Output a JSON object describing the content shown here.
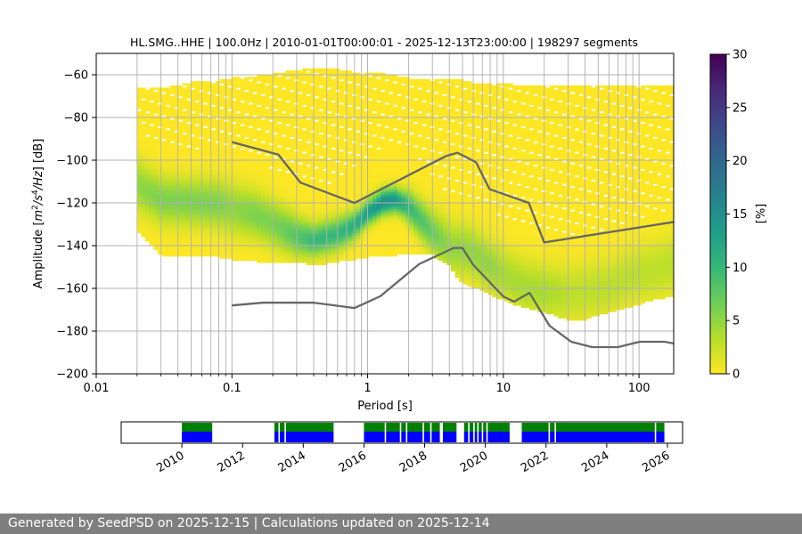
{
  "chart_data": [
    {
      "type": "heatmap",
      "title": "HL.SMG..HHE | 100.0Hz | 2010-01-01T00:00:01 - 2025-12-13T23:00:00 | 198297 segments",
      "xlabel": "Period [s]",
      "ylabel_parts": [
        "Amplitude [",
        "m",
        "2",
        "/s",
        "4",
        "/Hz",
        "] [dB]"
      ],
      "x_scale": "log",
      "xlim": [
        0.01,
        180
      ],
      "ylim": [
        -200,
        -50
      ],
      "x_ticks": [
        0.01,
        0.1,
        1,
        10,
        100
      ],
      "x_tick_labels": [
        "0.01",
        "0.1",
        "1",
        "10",
        "100"
      ],
      "y_ticks": [
        -200,
        -180,
        -160,
        -140,
        -120,
        -100,
        -80,
        -60
      ],
      "y_tick_labels": [
        "−200",
        "−180",
        "−160",
        "−140",
        "−120",
        "−100",
        "−80",
        "−60"
      ],
      "colorbar": {
        "label": "[%]",
        "range": [
          0,
          30
        ],
        "ticks": [
          0,
          5,
          10,
          15,
          20,
          25,
          30
        ],
        "tick_labels": [
          "0",
          "5",
          "10",
          "15",
          "20",
          "25",
          "30"
        ],
        "colormap": "viridis_r",
        "colors": [
          "#fde725",
          "#b5de2b",
          "#6ece58",
          "#35b779",
          "#1f9e89",
          "#26828e",
          "#31688e",
          "#3e4989",
          "#482878",
          "#440154"
        ]
      },
      "psd_distribution": {
        "period": [
          0.02,
          0.03,
          0.05,
          0.08,
          0.1,
          0.15,
          0.2,
          0.3,
          0.4,
          0.6,
          0.8,
          1.0,
          1.3,
          1.6,
          2.0,
          3.0,
          4.0,
          4.5,
          5.0,
          6.0,
          7.0,
          8.0,
          10,
          12,
          15,
          20,
          30,
          40,
          60,
          80,
          100,
          130,
          180
        ],
        "mode_db": [
          -112,
          -119,
          -120,
          -121,
          -123,
          -126,
          -130,
          -136,
          -138,
          -135,
          -131,
          -125,
          -120,
          -119,
          -122,
          -134,
          -141,
          -142,
          -142,
          -144,
          -147,
          -150,
          -154,
          -157,
          -160,
          -162,
          -163,
          -162,
          -160,
          -156,
          -154,
          -152,
          -149
        ],
        "max_percent": [
          5,
          6,
          6,
          6,
          5,
          6,
          6,
          8,
          10,
          10,
          11,
          13,
          15,
          14,
          10,
          7,
          5,
          5,
          5,
          5,
          5,
          5,
          4,
          4,
          4,
          4,
          3,
          3,
          3,
          3,
          3,
          3,
          3
        ],
        "min_db": [
          -133,
          -145,
          -145,
          -146,
          -147,
          -148,
          -148,
          -148,
          -150,
          -148,
          -147,
          -146,
          -145,
          -145,
          -144,
          -145,
          -150,
          -155,
          -158,
          -160,
          -162,
          -164,
          -166,
          -168,
          -170,
          -172,
          -175,
          -175,
          -172,
          -170,
          -168,
          -166,
          -164
        ],
        "max_db": [
          -66,
          -67,
          -64,
          -63,
          -62,
          -61,
          -60,
          -58,
          -57,
          -58,
          -59,
          -60,
          -60,
          -61,
          -62,
          -63,
          -63,
          -63,
          -63,
          -64,
          -65,
          -65,
          -65,
          -65,
          -66,
          -66,
          -66,
          -66,
          -66,
          -66,
          -66,
          -66,
          -66
        ]
      },
      "nhnm": {
        "period": [
          0.1,
          0.22,
          0.32,
          0.8,
          3.8,
          4.6,
          6.3,
          7.9,
          15.4,
          20,
          354
        ],
        "db": [
          -91.5,
          -97.4,
          -110.5,
          -120,
          -98,
          -96.5,
          -101,
          -113.5,
          -120,
          -138.5,
          -126
        ]
      },
      "nlnm": {
        "period": [
          0.1,
          0.17,
          0.4,
          0.8,
          1.24,
          2.4,
          4.3,
          5,
          6,
          10,
          12,
          15.6,
          21.9,
          31.6,
          45,
          70,
          101,
          154,
          180
        ],
        "db": [
          -168,
          -166.7,
          -166.7,
          -169.2,
          -163.7,
          -148.6,
          -141.1,
          -141.1,
          -149,
          -163.8,
          -166.2,
          -162.1,
          -177.5,
          -185,
          -187.5,
          -187.5,
          -185,
          -185,
          -185.8
        ]
      },
      "line_color": "#666666",
      "grid": true
    },
    {
      "type": "timeline",
      "x_ticks": [
        2010,
        2012,
        2014,
        2016,
        2018,
        2020,
        2022,
        2024,
        2026
      ],
      "x_tick_labels": [
        "2010",
        "2012",
        "2014",
        "2016",
        "2018",
        "2020",
        "2022",
        "2024",
        "2026"
      ],
      "xlim": [
        2008.0,
        2026.5
      ],
      "coverage_color": "#0000ff",
      "availability_color": "#008000",
      "coverage": [
        [
          2010.0,
          2011.0
        ],
        [
          2013.05,
          2015.0
        ],
        [
          2016.0,
          2018.5
        ],
        [
          2018.6,
          2019.05
        ],
        [
          2019.3,
          2020.8
        ],
        [
          2021.2,
          2025.9
        ]
      ],
      "gaps": [
        2013.2,
        2013.4,
        2016.7,
        2017.2,
        2017.4,
        2017.95,
        2018.2,
        2019.45,
        2019.62,
        2019.75,
        2019.9,
        2020.05,
        2022.1,
        2022.3,
        2025.6
      ]
    }
  ],
  "footer": {
    "text": "Generated by SeedPSD on 2025-12-15 | Calculations updated on 2025-12-14"
  }
}
